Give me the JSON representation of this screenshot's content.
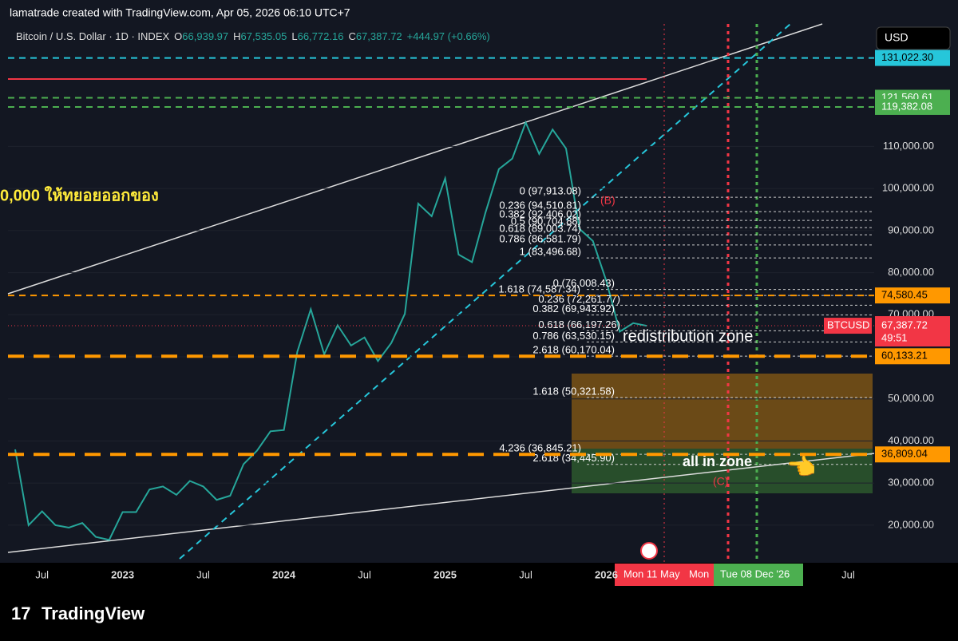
{
  "header": {
    "attribution": "lamatrade created with TradingView.com, Apr 05, 2026 06:10 UTC+7",
    "symbol": "Bitcoin / U.S. Dollar · 1D · INDEX",
    "open_label": "O",
    "open": "66,939.97",
    "high_label": "H",
    "high": "67,535.05",
    "low_label": "L",
    "low": "66,772.16",
    "close_label": "C",
    "close": "67,387.72",
    "change": "+444.97 (+0.66%)",
    "currency": "USD"
  },
  "chart_data": {
    "type": "line",
    "series": [
      {
        "name": "BTCUSD",
        "color": "#26a69a",
        "values": [
          38000,
          20000,
          23300,
          20000,
          19400,
          20500,
          17200,
          16500,
          23100,
          23100,
          28500,
          29200,
          27200,
          30500,
          29200,
          26000,
          27000,
          34500,
          37700,
          42300,
          42600,
          61200,
          71300,
          60600,
          67500,
          62700,
          64600,
          59000,
          63300,
          70200,
          96400,
          93400,
          102400,
          84300,
          82500,
          94200,
          104600,
          107100,
          115700,
          108200,
          114000,
          109500,
          90400,
          87500,
          78000,
          66000,
          68000,
          67387.72,
          null,
          null,
          null,
          null,
          null,
          null,
          null,
          null,
          null,
          null,
          null,
          null,
          null,
          null,
          null
        ]
      }
    ],
    "categories": [
      null,
      null,
      "Jul",
      null,
      null,
      null,
      null,
      null,
      "2023",
      null,
      null,
      null,
      null,
      null,
      "Jul",
      null,
      null,
      null,
      null,
      null,
      "2024",
      null,
      null,
      null,
      null,
      null,
      "Jul",
      null,
      null,
      null,
      null,
      null,
      "2025",
      null,
      null,
      null,
      null,
      null,
      "Jul",
      null,
      null,
      null,
      null,
      null,
      "2026",
      null,
      null,
      null,
      null,
      null,
      null,
      null,
      null,
      null,
      null,
      null,
      null,
      null,
      null,
      null,
      null,
      null,
      "Jul"
    ],
    "ylim": [
      11060,
      139100
    ],
    "yticks": [
      {
        "value": 20000,
        "label": "20,000.00"
      },
      {
        "value": 30000,
        "label": "30,000.00"
      },
      {
        "value": 40000,
        "label": "40,000.00"
      },
      {
        "value": 50000,
        "label": "50,000.00"
      },
      {
        "value": 60000,
        "label": "60,000.00"
      },
      {
        "value": 70000,
        "label": "70,000.00"
      },
      {
        "value": 80000,
        "label": "80,000.00"
      },
      {
        "value": 90000,
        "label": "90,000.00"
      },
      {
        "value": 100000,
        "label": "100,000.00"
      },
      {
        "value": 110000,
        "label": "110,000.00"
      }
    ],
    "levels": [
      {
        "value": 131022.3,
        "label": "131,022.30",
        "color": "#26c6da"
      },
      {
        "value": 121560.61,
        "label": "121,560.61",
        "color": "#4caf50"
      },
      {
        "value": 119382.08,
        "label": "119,382.08",
        "color": "#4caf50"
      },
      {
        "value": 74580.45,
        "label": "74,580.45",
        "color": "#ff9800"
      },
      {
        "value": 60133.21,
        "label": "60,133.21",
        "color": "#ff9800"
      },
      {
        "value": 36809.04,
        "label": "36,809.04",
        "color": "#ff9800"
      }
    ],
    "last_price": {
      "symbol": "BTCUSD",
      "value": 67387.72,
      "label": "67,387.72",
      "countdown": "49:51",
      "color": "#f23645"
    },
    "fib_labels": [
      {
        "label": "0 (97,913.08)",
        "value": 97913.08
      },
      {
        "label": "0.236 (94,510.81)",
        "value": 94510.81
      },
      {
        "label": "0.382 (92,406.02)",
        "value": 92406.02
      },
      {
        "label": "0.5 (90,704.88)",
        "value": 90704.88
      },
      {
        "label": "0.618 (89,003.74)",
        "value": 89003.74
      },
      {
        "label": "0.786 (86,581.79)",
        "value": 86581.79
      },
      {
        "label": "1 (83,496.68)",
        "value": 83496.68
      },
      {
        "label": "1.618 (74,587.34)",
        "value": 74587.34
      },
      {
        "label": "0 (76,008.43)",
        "value": 76008.43
      },
      {
        "label": "0.236 (72,261.77)",
        "value": 72261.77
      },
      {
        "label": "0.382 (69,943.92)",
        "value": 69943.92
      },
      {
        "label": "0.618 (66,197.26)",
        "value": 66197.26
      },
      {
        "label": "0.786 (63,530.15)",
        "value": 63530.15
      },
      {
        "label": "2.618 (60,170.04)",
        "value": 60170.04
      },
      {
        "label": "1.618 (50,321.58)",
        "value": 50321.58
      },
      {
        "label": "4.236 (36,845.21)",
        "value": 36845.21
      },
      {
        "label": "2.618 (34,445.90)",
        "value": 34445.9
      }
    ],
    "annotations": {
      "thai_note": "0,000 ให้ทยอยออกของ",
      "redistribution": "redistribution zone",
      "all_in": "all in zone",
      "wave_b": "(B)",
      "wave_c": "(C)"
    },
    "time_markers": [
      "Mon 11 May",
      "Mon",
      "Tue 08 Dec '26"
    ]
  },
  "footer": {
    "brand": "TradingView"
  }
}
